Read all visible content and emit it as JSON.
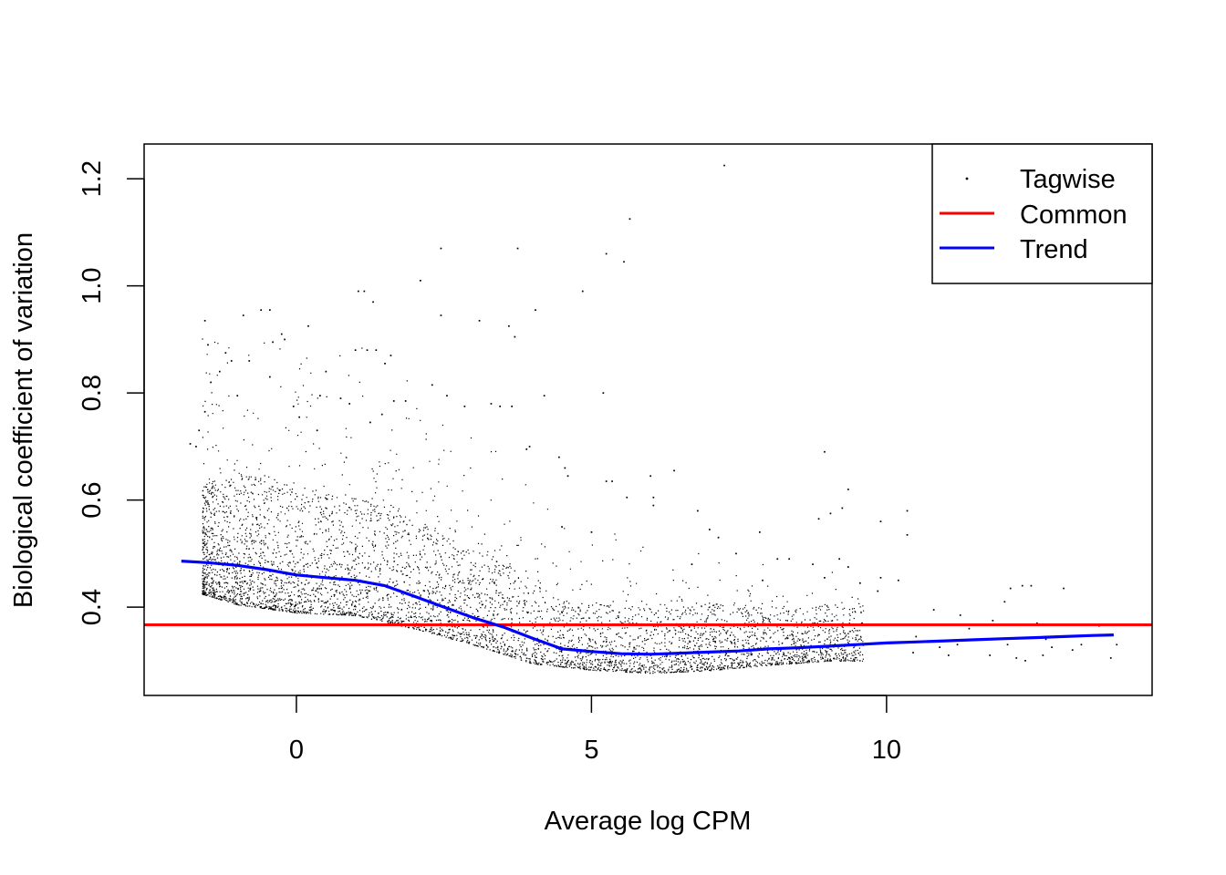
{
  "chart_data": {
    "type": "scatter",
    "title": "",
    "xlabel": "Average log CPM",
    "ylabel": "Biological coefficient of variation",
    "xlim": [
      -2.58,
      14.5
    ],
    "ylim": [
      0.235,
      1.265
    ],
    "x_ticks": [
      0,
      5,
      10
    ],
    "x_tick_labels": [
      "0",
      "5",
      "10"
    ],
    "y_ticks": [
      0.4,
      0.6,
      0.8,
      1.0,
      1.2
    ],
    "y_tick_labels": [
      "0.4",
      "0.6",
      "0.8",
      "1.0",
      "1.2"
    ],
    "grid": false,
    "legend_position": "top-right",
    "legend": [
      {
        "label": "Tagwise",
        "kind": "point",
        "color": "#000000"
      },
      {
        "label": "Common",
        "kind": "line",
        "color": "#ff0000"
      },
      {
        "label": "Trend",
        "kind": "line",
        "color": "#0000ff"
      }
    ],
    "series": [
      {
        "name": "Tagwise",
        "kind": "scatter",
        "color": "#000000",
        "points": [
          [
            7.25,
            1.225
          ],
          [
            5.65,
            1.125
          ],
          [
            2.45,
            1.07
          ],
          [
            3.75,
            1.07
          ],
          [
            5.25,
            1.06
          ],
          [
            5.55,
            1.045
          ],
          [
            2.1,
            1.01
          ],
          [
            1.05,
            0.99
          ],
          [
            1.15,
            0.99
          ],
          [
            4.85,
            0.99
          ],
          [
            1.3,
            0.97
          ],
          [
            -0.6,
            0.955
          ],
          [
            -0.45,
            0.955
          ],
          [
            4.05,
            0.955
          ],
          [
            2.45,
            0.945
          ],
          [
            -0.9,
            0.945
          ],
          [
            -1.55,
            0.935
          ],
          [
            3.1,
            0.935
          ],
          [
            0.2,
            0.925
          ],
          [
            3.6,
            0.925
          ],
          [
            -0.25,
            0.91
          ],
          [
            -0.4,
            0.895
          ],
          [
            3.7,
            0.905
          ],
          [
            -1.5,
            0.89
          ],
          [
            -0.2,
            0.9
          ],
          [
            1.0,
            0.88
          ],
          [
            1.2,
            0.88
          ],
          [
            1.35,
            0.88
          ],
          [
            -1.2,
            0.875
          ],
          [
            1.6,
            0.87
          ],
          [
            1.5,
            0.855
          ],
          [
            -1.1,
            0.86
          ],
          [
            -0.8,
            0.86
          ],
          [
            -1.3,
            0.84
          ],
          [
            0.5,
            0.84
          ],
          [
            -0.45,
            0.83
          ],
          [
            2.3,
            0.815
          ],
          [
            -1.45,
            0.82
          ],
          [
            3.3,
            0.78
          ],
          [
            3.45,
            0.775
          ],
          [
            5.2,
            0.8
          ],
          [
            4.2,
            0.795
          ],
          [
            1.65,
            0.785
          ],
          [
            -1.0,
            0.795
          ],
          [
            0.4,
            0.795
          ],
          [
            2.55,
            0.795
          ],
          [
            0.75,
            0.79
          ],
          [
            1.85,
            0.785
          ],
          [
            2.85,
            0.775
          ],
          [
            3.65,
            0.775
          ],
          [
            -1.55,
            0.765
          ],
          [
            0.9,
            0.78
          ],
          [
            -0.05,
            0.775
          ],
          [
            1.45,
            0.76
          ],
          [
            -1.8,
            0.705
          ],
          [
            -1.7,
            0.7
          ],
          [
            -1.65,
            0.73
          ],
          [
            0.05,
            0.755
          ],
          [
            0.35,
            0.73
          ],
          [
            1.25,
            0.745
          ],
          [
            3.95,
            0.7
          ],
          [
            3.9,
            0.695
          ],
          [
            4.45,
            0.68
          ],
          [
            8.95,
            0.69
          ],
          [
            6.0,
            0.645
          ],
          [
            4.55,
            0.66
          ],
          [
            6.4,
            0.655
          ],
          [
            4.6,
            0.645
          ],
          [
            5.25,
            0.635
          ],
          [
            5.35,
            0.635
          ],
          [
            6.8,
            0.58
          ],
          [
            5.6,
            0.605
          ],
          [
            6.05,
            0.605
          ],
          [
            9.35,
            0.62
          ],
          [
            10.35,
            0.58
          ],
          [
            9.25,
            0.585
          ],
          [
            9.05,
            0.575
          ],
          [
            8.85,
            0.565
          ],
          [
            9.9,
            0.56
          ],
          [
            10.35,
            0.535
          ],
          [
            7.15,
            0.53
          ],
          [
            7.0,
            0.545
          ],
          [
            7.85,
            0.54
          ],
          [
            6.05,
            0.59
          ],
          [
            4.5,
            0.55
          ],
          [
            5.0,
            0.54
          ],
          [
            6.7,
            0.48
          ],
          [
            8.15,
            0.49
          ],
          [
            8.35,
            0.49
          ],
          [
            8.75,
            0.48
          ],
          [
            9.2,
            0.49
          ],
          [
            9.35,
            0.475
          ],
          [
            7.45,
            0.5
          ],
          [
            9.9,
            0.455
          ],
          [
            10.2,
            0.45
          ],
          [
            8.95,
            0.455
          ],
          [
            9.55,
            0.445
          ],
          [
            9.85,
            0.43
          ],
          [
            7.9,
            0.45
          ],
          [
            12.1,
            0.435
          ],
          [
            12.3,
            0.44
          ],
          [
            12.45,
            0.44
          ],
          [
            13.0,
            0.435
          ],
          [
            12.0,
            0.41
          ],
          [
            10.8,
            0.395
          ],
          [
            11.25,
            0.385
          ],
          [
            11.8,
            0.375
          ],
          [
            12.55,
            0.37
          ],
          [
            13.6,
            0.365
          ],
          [
            11.4,
            0.36
          ],
          [
            10.5,
            0.345
          ],
          [
            11.5,
            0.34
          ],
          [
            12.05,
            0.33
          ],
          [
            12.7,
            0.34
          ],
          [
            13.3,
            0.33
          ],
          [
            13.9,
            0.33
          ],
          [
            10.9,
            0.325
          ],
          [
            11.75,
            0.31
          ],
          [
            12.2,
            0.305
          ],
          [
            12.65,
            0.31
          ],
          [
            13.15,
            0.32
          ],
          [
            13.8,
            0.305
          ],
          [
            10.45,
            0.315
          ],
          [
            11.2,
            0.33
          ],
          [
            12.8,
            0.325
          ],
          [
            11.05,
            0.31
          ],
          [
            12.35,
            0.3
          ]
        ],
        "density_cloud": {
          "count": 12000,
          "lower_envelope": [
            [
              -1.6,
              0.425
            ],
            [
              -1.0,
              0.405
            ],
            [
              0.0,
              0.39
            ],
            [
              1.0,
              0.385
            ],
            [
              2.0,
              0.36
            ],
            [
              3.0,
              0.33
            ],
            [
              4.0,
              0.295
            ],
            [
              5.0,
              0.283
            ],
            [
              6.0,
              0.277
            ],
            [
              7.0,
              0.282
            ],
            [
              8.0,
              0.292
            ],
            [
              9.0,
              0.3
            ],
            [
              10.0,
              0.3
            ]
          ]
        }
      },
      {
        "name": "Common",
        "kind": "hline",
        "color": "#ff0000",
        "y": 0.367
      },
      {
        "name": "Trend",
        "kind": "line",
        "color": "#0000ff",
        "points": [
          [
            -1.95,
            0.486
          ],
          [
            -1.5,
            0.483
          ],
          [
            -1.0,
            0.478
          ],
          [
            -0.5,
            0.47
          ],
          [
            0.0,
            0.46
          ],
          [
            0.5,
            0.455
          ],
          [
            1.0,
            0.45
          ],
          [
            1.5,
            0.44
          ],
          [
            2.0,
            0.42
          ],
          [
            2.5,
            0.4
          ],
          [
            3.0,
            0.38
          ],
          [
            3.5,
            0.363
          ],
          [
            4.0,
            0.342
          ],
          [
            4.5,
            0.322
          ],
          [
            5.0,
            0.317
          ],
          [
            5.5,
            0.313
          ],
          [
            6.0,
            0.312
          ],
          [
            6.5,
            0.314
          ],
          [
            7.0,
            0.316
          ],
          [
            7.5,
            0.318
          ],
          [
            8.0,
            0.322
          ],
          [
            8.5,
            0.324
          ],
          [
            9.0,
            0.327
          ],
          [
            9.5,
            0.33
          ],
          [
            10.0,
            0.333
          ],
          [
            10.5,
            0.335
          ],
          [
            11.0,
            0.337
          ],
          [
            11.5,
            0.339
          ],
          [
            12.0,
            0.341
          ],
          [
            12.5,
            0.343
          ],
          [
            13.0,
            0.345
          ],
          [
            13.5,
            0.347
          ],
          [
            13.85,
            0.348
          ]
        ]
      }
    ]
  }
}
